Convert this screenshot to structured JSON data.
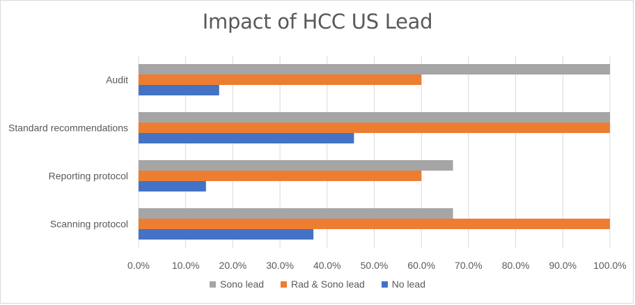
{
  "chart_data": {
    "type": "bar",
    "orientation": "horizontal",
    "title": "Impact of HCC US Lead",
    "categories": [
      "Audit",
      "Standard recommendations",
      "Reporting protocol",
      "Scanning protocol"
    ],
    "series": [
      {
        "name": "Sono lead",
        "color": "#a5a5a5",
        "values": [
          100.0,
          100.0,
          66.7,
          66.7
        ]
      },
      {
        "name": "Rad & Sono lead",
        "color": "#ed7d31",
        "values": [
          60.0,
          100.0,
          60.0,
          100.0
        ]
      },
      {
        "name": "No lead",
        "color": "#4472c4",
        "values": [
          17.1,
          45.7,
          14.3,
          37.1
        ]
      }
    ],
    "xlim": [
      0,
      100
    ],
    "xticks": [
      "0.0%",
      "10.0%",
      "20.0%",
      "30.0%",
      "40.0%",
      "50.0%",
      "60.0%",
      "70.0%",
      "80.0%",
      "90.0%",
      "100.0%"
    ],
    "xtick_values": [
      0,
      10,
      20,
      30,
      40,
      50,
      60,
      70,
      80,
      90,
      100
    ],
    "xlabel": "",
    "ylabel": "",
    "grid": true,
    "legend_position": "bottom"
  }
}
